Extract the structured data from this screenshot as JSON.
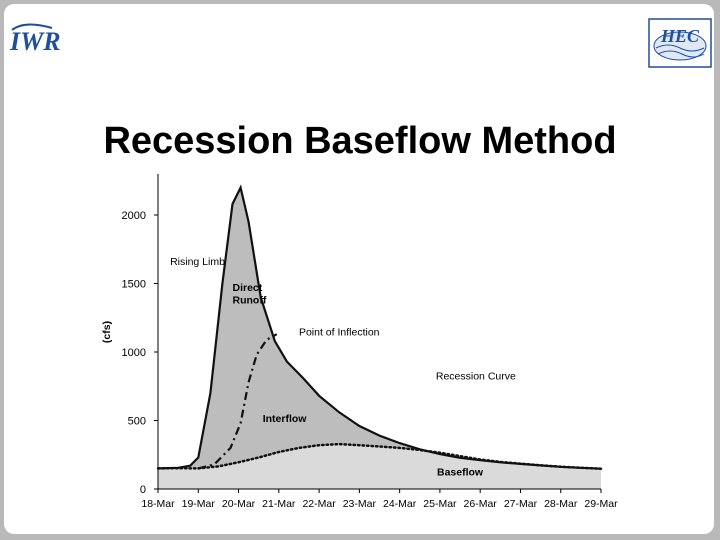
{
  "slide": {
    "title": "Recession Baseflow Method",
    "logo_left": {
      "text": "IWR",
      "color": "#1f4e9a"
    },
    "logo_right": {
      "text": "HEC",
      "color": "#1f4e9a"
    }
  },
  "chart_data": {
    "type": "area",
    "title": "",
    "xlabel": "",
    "ylabel": "(cfs)",
    "x_categories": [
      "18-Mar",
      "19-Mar",
      "20-Mar",
      "21-Mar",
      "22-Mar",
      "23-Mar",
      "24-Mar",
      "25-Mar",
      "26-Mar",
      "27-Mar",
      "28-Mar",
      "29-Mar"
    ],
    "ylim": [
      0,
      2300
    ],
    "yticks": [
      0,
      500,
      1000,
      1500,
      2000
    ],
    "grid": false,
    "series": [
      {
        "key": "total",
        "style": "solid",
        "color": "#111111",
        "fill": "#bdbdbd",
        "points": [
          [
            0,
            150
          ],
          [
            0.5,
            155
          ],
          [
            0.8,
            170
          ],
          [
            1.0,
            230
          ],
          [
            1.3,
            700
          ],
          [
            1.6,
            1500
          ],
          [
            1.85,
            2080
          ],
          [
            2.05,
            2200
          ],
          [
            2.25,
            1950
          ],
          [
            2.55,
            1400
          ],
          [
            2.9,
            1080
          ],
          [
            3.2,
            930
          ],
          [
            3.6,
            810
          ],
          [
            4.0,
            680
          ],
          [
            4.5,
            560
          ],
          [
            5.0,
            460
          ],
          [
            5.5,
            390
          ],
          [
            6.0,
            335
          ],
          [
            6.5,
            290
          ],
          [
            7.0,
            255
          ],
          [
            7.5,
            228
          ],
          [
            8.0,
            210
          ],
          [
            8.5,
            195
          ],
          [
            9.0,
            183
          ],
          [
            9.5,
            172
          ],
          [
            10,
            162
          ],
          [
            10.5,
            155
          ],
          [
            11,
            148
          ]
        ]
      },
      {
        "key": "interflow",
        "style": "dash-dot",
        "color": "#111111",
        "points": [
          [
            1.0,
            150
          ],
          [
            1.4,
            180
          ],
          [
            1.8,
            300
          ],
          [
            2.05,
            480
          ],
          [
            2.25,
            780
          ],
          [
            2.45,
            980
          ],
          [
            2.7,
            1090
          ],
          [
            2.95,
            1130
          ]
        ]
      },
      {
        "key": "baseflow",
        "style": "dotted",
        "color": "#111111",
        "fill": "#dadada",
        "points": [
          [
            0,
            150
          ],
          [
            0.5,
            152
          ],
          [
            1.0,
            150
          ],
          [
            1.5,
            165
          ],
          [
            2.0,
            195
          ],
          [
            2.5,
            230
          ],
          [
            3.0,
            270
          ],
          [
            3.5,
            300
          ],
          [
            4.0,
            320
          ],
          [
            4.5,
            328
          ],
          [
            5.0,
            320
          ],
          [
            5.5,
            310
          ],
          [
            6.0,
            300
          ],
          [
            6.5,
            285
          ],
          [
            7.0,
            265
          ],
          [
            7.5,
            240
          ],
          [
            8.0,
            215
          ],
          [
            8.5,
            198
          ],
          [
            9.0,
            185
          ],
          [
            9.5,
            173
          ],
          [
            10,
            163
          ],
          [
            10.5,
            155
          ],
          [
            11,
            148
          ]
        ]
      }
    ],
    "annotations": [
      {
        "text": "Rising Limb",
        "x": 0.3,
        "y": 1635,
        "bold": false,
        "anchor": "start"
      },
      {
        "text": "Direct",
        "x": 1.85,
        "y": 1445,
        "bold": true,
        "anchor": "start"
      },
      {
        "text": "Runoff",
        "x": 1.85,
        "y": 1355,
        "bold": true,
        "anchor": "start"
      },
      {
        "text": "Point of Inflection",
        "x": 3.5,
        "y": 1120,
        "bold": false,
        "anchor": "start"
      },
      {
        "text": "Recession Curve",
        "x": 6.9,
        "y": 800,
        "bold": false,
        "anchor": "start"
      },
      {
        "text": "Interflow",
        "x": 2.6,
        "y": 490,
        "bold": true,
        "anchor": "start"
      },
      {
        "text": "Baseflow",
        "x": 7.5,
        "y": 100,
        "bold": true,
        "anchor": "middle"
      }
    ]
  }
}
